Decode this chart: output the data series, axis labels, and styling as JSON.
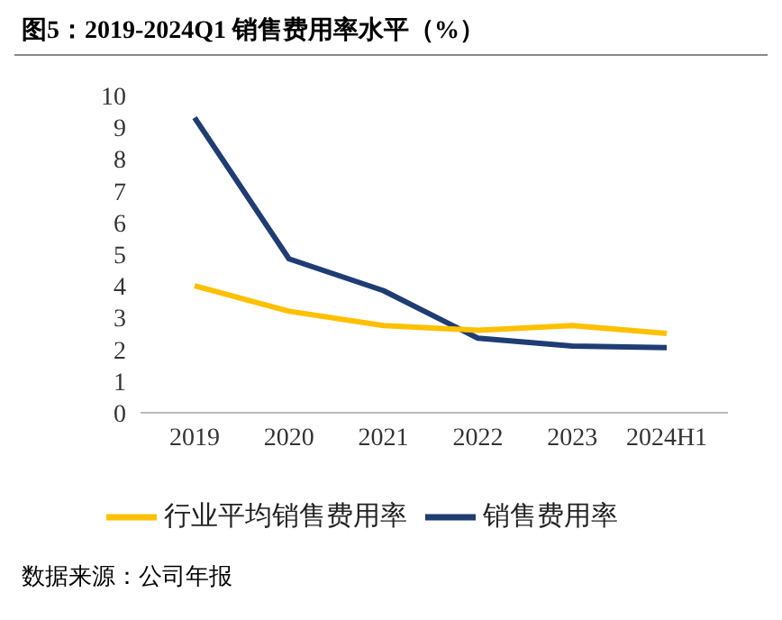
{
  "chart_data": {
    "type": "line",
    "title": "图5：2019-2024Q1 销售费用率水平（%）",
    "categories": [
      "2019",
      "2020",
      "2021",
      "2022",
      "2023",
      "2024H1"
    ],
    "series": [
      {
        "name": "销售费用率",
        "color": "#1f3d73",
        "values": [
          9.3,
          4.85,
          3.85,
          2.35,
          2.1,
          2.05
        ]
      },
      {
        "name": "行业平均销售费用率",
        "color": "#ffc000",
        "values": [
          4.0,
          3.2,
          2.75,
          2.6,
          2.75,
          2.5
        ]
      }
    ],
    "ylim": [
      0,
      10
    ],
    "yticks": [
      0,
      1,
      2,
      3,
      4,
      5,
      6,
      7,
      8,
      9,
      10
    ],
    "legend": "bottom",
    "marker": "none",
    "line_style": "solid",
    "annotations": [
      "数据来源：公司年报"
    ]
  }
}
